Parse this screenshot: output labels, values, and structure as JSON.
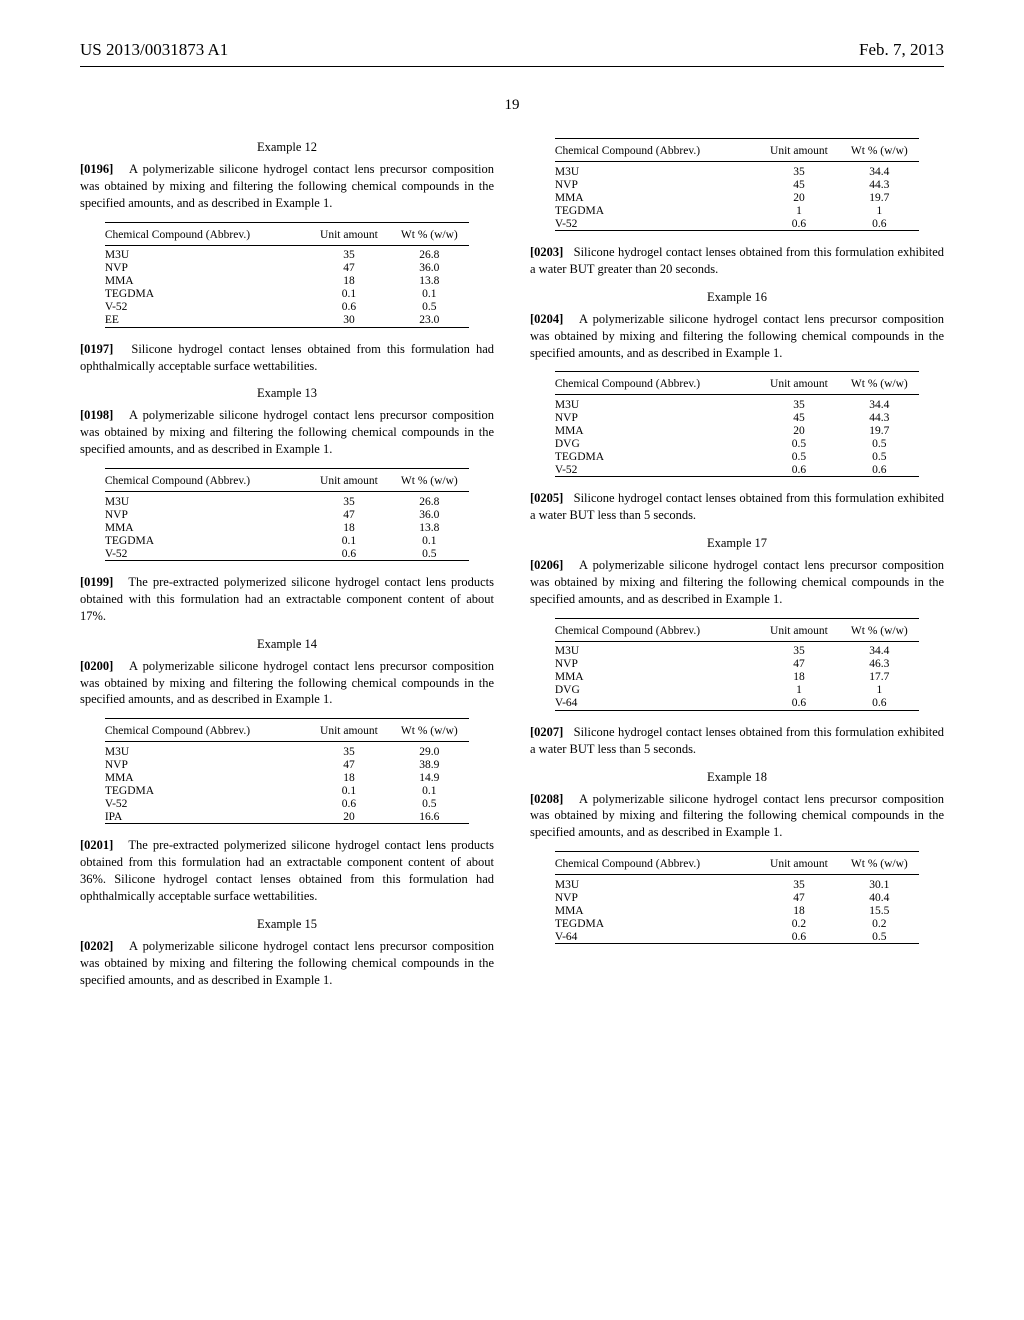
{
  "header": {
    "left": "US 2013/0031873 A1",
    "right": "Feb. 7, 2013"
  },
  "page_number": "19",
  "table_headers": {
    "c1": "Chemical Compound (Abbrev.)",
    "c2": "Unit amount",
    "c3": "Wt % (w/w)"
  },
  "examples": {
    "e12": {
      "title": "Example 12",
      "intro_num": "[0196]",
      "intro_txt": "A polymerizable silicone hydrogel contact lens precursor composition was obtained by mixing and filtering the following chemical compounds in the specified amounts, and as described in Example 1.",
      "rows": [
        [
          "M3U",
          "35",
          "26.8"
        ],
        [
          "NVP",
          "47",
          "36.0"
        ],
        [
          "MMA",
          "18",
          "13.8"
        ],
        [
          "TEGDMA",
          "0.1",
          "0.1"
        ],
        [
          "V-52",
          "0.6",
          "0.5"
        ],
        [
          "EE",
          "30",
          "23.0"
        ]
      ],
      "out_num": "[0197]",
      "out_txt": "Silicone hydrogel contact lenses obtained from this formulation had ophthalmically acceptable surface wettabilities."
    },
    "e13": {
      "title": "Example 13",
      "intro_num": "[0198]",
      "intro_txt": "A polymerizable silicone hydrogel contact lens precursor composition was obtained by mixing and filtering the following chemical compounds in the specified amounts, and as described in Example 1.",
      "rows": [
        [
          "M3U",
          "35",
          "26.8"
        ],
        [
          "NVP",
          "47",
          "36.0"
        ],
        [
          "MMA",
          "18",
          "13.8"
        ],
        [
          "TEGDMA",
          "0.1",
          "0.1"
        ],
        [
          "V-52",
          "0.6",
          "0.5"
        ]
      ],
      "out_num": "[0199]",
      "out_txt": "The pre-extracted polymerized silicone hydrogel contact lens products obtained with this formulation had an extractable component content of about 17%."
    },
    "e14": {
      "title": "Example 14",
      "intro_num": "[0200]",
      "intro_txt": "A polymerizable silicone hydrogel contact lens precursor composition was obtained by mixing and filtering the following chemical compounds in the specified amounts, and as described in Example 1.",
      "rows": [
        [
          "M3U",
          "35",
          "29.0"
        ],
        [
          "NVP",
          "47",
          "38.9"
        ],
        [
          "MMA",
          "18",
          "14.9"
        ],
        [
          "TEGDMA",
          "0.1",
          "0.1"
        ],
        [
          "V-52",
          "0.6",
          "0.5"
        ],
        [
          "IPA",
          "20",
          "16.6"
        ]
      ],
      "out_num": "[0201]",
      "out_txt": "The pre-extracted polymerized silicone hydrogel contact lens products obtained from this formulation had an extractable component content of about 36%. Silicone hydrogel contact lenses obtained from this formulation had ophthalmically acceptable surface wettabilities."
    },
    "e15": {
      "title": "Example 15",
      "intro_num": "[0202]",
      "intro_txt": "A polymerizable silicone hydrogel contact lens precursor composition was obtained by mixing and filtering the following chemical compounds in the specified amounts, and as described in Example 1.",
      "rows": [
        [
          "M3U",
          "35",
          "34.4"
        ],
        [
          "NVP",
          "45",
          "44.3"
        ],
        [
          "MMA",
          "20",
          "19.7"
        ],
        [
          "TEGDMA",
          "1",
          "1"
        ],
        [
          "V-52",
          "0.6",
          "0.6"
        ]
      ],
      "out_num": "[0203]",
      "out_txt": "Silicone hydrogel contact lenses obtained from this formulation exhibited a water BUT greater than 20 seconds."
    },
    "e16": {
      "title": "Example 16",
      "intro_num": "[0204]",
      "intro_txt": "A polymerizable silicone hydrogel contact lens precursor composition was obtained by mixing and filtering the following chemical compounds in the specified amounts, and as described in Example 1.",
      "rows": [
        [
          "M3U",
          "35",
          "34.4"
        ],
        [
          "NVP",
          "45",
          "44.3"
        ],
        [
          "MMA",
          "20",
          "19.7"
        ],
        [
          "DVG",
          "0.5",
          "0.5"
        ],
        [
          "TEGDMA",
          "0.5",
          "0.5"
        ],
        [
          "V-52",
          "0.6",
          "0.6"
        ]
      ],
      "out_num": "[0205]",
      "out_txt": "Silicone hydrogel contact lenses obtained from this formulation exhibited a water BUT less than 5 seconds."
    },
    "e17": {
      "title": "Example 17",
      "intro_num": "[0206]",
      "intro_txt": "A polymerizable silicone hydrogel contact lens precursor composition was obtained by mixing and filtering the following chemical compounds in the specified amounts, and as described in Example 1.",
      "rows": [
        [
          "M3U",
          "35",
          "34.4"
        ],
        [
          "NVP",
          "47",
          "46.3"
        ],
        [
          "MMA",
          "18",
          "17.7"
        ],
        [
          "DVG",
          "1",
          "1"
        ],
        [
          "V-64",
          "0.6",
          "0.6"
        ]
      ],
      "out_num": "[0207]",
      "out_txt": "Silicone hydrogel contact lenses obtained from this formulation exhibited a water BUT less than 5 seconds."
    },
    "e18": {
      "title": "Example 18",
      "intro_num": "[0208]",
      "intro_txt": "A polymerizable silicone hydrogel contact lens precursor composition was obtained by mixing and filtering the following chemical compounds in the specified amounts, and as described in Example 1.",
      "rows": [
        [
          "M3U",
          "35",
          "30.1"
        ],
        [
          "NVP",
          "47",
          "40.4"
        ],
        [
          "MMA",
          "18",
          "15.5"
        ],
        [
          "TEGDMA",
          "0.2",
          "0.2"
        ],
        [
          "V-64",
          "0.6",
          "0.5"
        ]
      ]
    }
  }
}
